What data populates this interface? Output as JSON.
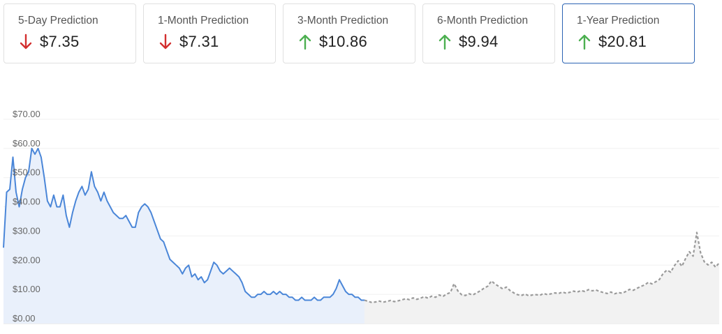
{
  "predictions": [
    {
      "label": "5-Day Prediction",
      "value": "$7.35",
      "direction": "down"
    },
    {
      "label": "1-Month Prediction",
      "value": "$7.31",
      "direction": "down"
    },
    {
      "label": "3-Month Prediction",
      "value": "$10.86",
      "direction": "up"
    },
    {
      "label": "6-Month Prediction",
      "value": "$9.94",
      "direction": "up"
    },
    {
      "label": "1-Year Prediction",
      "value": "$20.81",
      "direction": "up",
      "selected": true
    }
  ],
  "colors": {
    "down": "#d32f2f",
    "up": "#4caf50",
    "actual_line": "#4a86d8",
    "actual_fill": "#e9f0fb",
    "forecast_line": "#9a9a9a",
    "forecast_fill": "#f2f2f2",
    "selected_border": "#2b63b3"
  },
  "chart_data": {
    "type": "area",
    "title": "",
    "xlabel": "",
    "ylabel": "",
    "y_tick_labels": [
      "$0.00",
      "$10.00",
      "$20.00",
      "$30.00",
      "$40.00",
      "$50.00",
      "$60.00",
      "$70.00"
    ],
    "ylim": [
      0,
      70
    ],
    "grid": true,
    "series": [
      {
        "style": "solid",
        "values": [
          26,
          45,
          46,
          57,
          45,
          40,
          46,
          50,
          52,
          60,
          58,
          60,
          57,
          50,
          42,
          40,
          44,
          40,
          40,
          44,
          37,
          33,
          38,
          42,
          45,
          47,
          44,
          46,
          52,
          47,
          45,
          42,
          45,
          42,
          40,
          38,
          37,
          36,
          36,
          37,
          35,
          33,
          33,
          38,
          40,
          41,
          40,
          38,
          35,
          32,
          29,
          28,
          25,
          22,
          21,
          20,
          19,
          17,
          19,
          20,
          16,
          17,
          15,
          16,
          14,
          15,
          18,
          21,
          20,
          18,
          17,
          18,
          19,
          18,
          17,
          16,
          14,
          11,
          10,
          9,
          9,
          10,
          10,
          11,
          10,
          10,
          11,
          10,
          11,
          10,
          10,
          9,
          9,
          8,
          8,
          9,
          8,
          8,
          8,
          9,
          8,
          8,
          9,
          9,
          9,
          10,
          12,
          15,
          13,
          11,
          10,
          10,
          9,
          9,
          8,
          8
        ]
      },
      {
        "style": "dashed",
        "values": [
          7.6,
          7.2,
          7.4,
          7.7,
          7.3,
          7.6,
          7.9,
          7.5,
          7.8,
          8.1,
          8.5,
          8.2,
          8.8,
          8.3,
          8.7,
          9.2,
          8.7,
          9.4,
          9.0,
          9.8,
          9.3,
          10.1,
          10.6,
          13.7,
          11.2,
          9.9,
          9.6,
          10.2,
          9.8,
          10.5,
          11.2,
          12.1,
          12.8,
          14.6,
          13.5,
          12.7,
          11.9,
          12.5,
          11.3,
          10.5,
          9.9,
          9.6,
          10.1,
          9.5,
          9.8,
          9.9,
          9.7,
          10.3,
          9.9,
          10.2,
          10.5,
          10.3,
          10.8,
          10.4,
          10.7,
          11.1,
          10.8,
          11.3,
          11.0,
          11.6,
          11.2,
          11.5,
          11.0,
          10.6,
          10.3,
          10.8,
          10.2,
          10.6,
          10.4,
          11.0,
          11.7,
          11.4,
          12.1,
          12.7,
          13.2,
          14.1,
          13.6,
          14.3,
          15.1,
          17.2,
          18.3,
          17.6,
          19.8,
          21.5,
          19.6,
          22.3,
          24.6,
          23.1,
          31.2,
          24.3,
          21.2,
          20.1,
          21.0,
          19.3,
          20.8
        ]
      }
    ]
  }
}
